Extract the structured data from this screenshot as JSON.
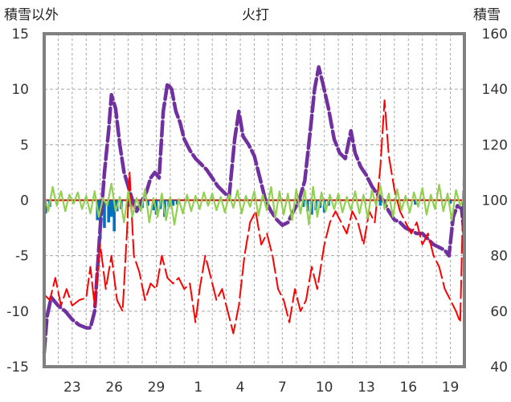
{
  "chart_data": {
    "type": "line",
    "title": "火打",
    "y_left_label": "積雪以外",
    "y_right_label": "積雪",
    "y_left_range": [
      -15,
      15
    ],
    "y_left_ticks": [
      "15",
      "10",
      "5",
      "0",
      "-5",
      "-10",
      "-15"
    ],
    "y_right_range": [
      40,
      160
    ],
    "y_right_ticks": [
      "160",
      "140",
      "120",
      "100",
      "80",
      "60",
      "40"
    ],
    "x_day_range": [
      21,
      51
    ],
    "x_ticks": [
      {
        "label": "23",
        "day": 23
      },
      {
        "label": "26",
        "day": 26
      },
      {
        "label": "29",
        "day": 29
      },
      {
        "label": "1",
        "day": 32
      },
      {
        "label": "4",
        "day": 35
      },
      {
        "label": "7",
        "day": 38
      },
      {
        "label": "10",
        "day": 41
      },
      {
        "label": "13",
        "day": 44
      },
      {
        "label": "16",
        "day": 47
      },
      {
        "label": "19",
        "day": 50
      }
    ],
    "colors": {
      "snow_depth": "#7030a0",
      "temperature": "#ff0000",
      "wind": "#92d050",
      "precipitation": "#0070c0",
      "grid": "#a6a6a6",
      "frame": "#808080",
      "zero_line": "#c00000"
    },
    "series": [
      {
        "key": "snow_depth",
        "axis": "right",
        "points": [
          [
            21.0,
            45
          ],
          [
            21.2,
            58
          ],
          [
            21.5,
            65
          ],
          [
            22.0,
            62
          ],
          [
            22.5,
            60
          ],
          [
            23.0,
            57
          ],
          [
            23.5,
            55
          ],
          [
            24.0,
            54
          ],
          [
            24.3,
            54
          ],
          [
            24.6,
            60
          ],
          [
            25.0,
            90
          ],
          [
            25.3,
            110
          ],
          [
            25.6,
            125
          ],
          [
            25.8,
            138
          ],
          [
            26.1,
            133
          ],
          [
            26.4,
            120
          ],
          [
            26.7,
            110
          ],
          [
            27.0,
            105
          ],
          [
            27.3,
            100
          ],
          [
            27.6,
            96
          ],
          [
            28.0,
            100
          ],
          [
            28.3,
            103
          ],
          [
            28.6,
            108
          ],
          [
            28.9,
            110
          ],
          [
            29.2,
            108
          ],
          [
            29.5,
            132
          ],
          [
            29.8,
            142
          ],
          [
            30.1,
            140
          ],
          [
            30.4,
            132
          ],
          [
            30.7,
            128
          ],
          [
            31.0,
            122
          ],
          [
            31.4,
            118
          ],
          [
            31.8,
            115
          ],
          [
            32.2,
            113
          ],
          [
            32.6,
            111
          ],
          [
            33.0,
            108
          ],
          [
            33.4,
            105
          ],
          [
            33.8,
            103
          ],
          [
            34.2,
            101
          ],
          [
            34.6,
            122
          ],
          [
            34.9,
            132
          ],
          [
            35.2,
            123
          ],
          [
            35.6,
            120
          ],
          [
            36.0,
            116
          ],
          [
            36.4,
            108
          ],
          [
            36.8,
            100
          ],
          [
            37.2,
            96
          ],
          [
            37.6,
            93
          ],
          [
            38.0,
            91
          ],
          [
            38.4,
            92
          ],
          [
            38.8,
            96
          ],
          [
            39.2,
            100
          ],
          [
            39.6,
            107
          ],
          [
            40.0,
            125
          ],
          [
            40.3,
            140
          ],
          [
            40.6,
            148
          ],
          [
            40.9,
            142
          ],
          [
            41.3,
            133
          ],
          [
            41.7,
            122
          ],
          [
            42.1,
            117
          ],
          [
            42.5,
            115
          ],
          [
            42.9,
            125
          ],
          [
            43.2,
            117
          ],
          [
            43.6,
            112
          ],
          [
            44.0,
            109
          ],
          [
            44.4,
            105
          ],
          [
            44.8,
            102
          ],
          [
            45.2,
            100
          ],
          [
            45.6,
            96
          ],
          [
            46.0,
            93
          ],
          [
            46.4,
            92
          ],
          [
            46.8,
            90
          ],
          [
            47.2,
            89
          ],
          [
            47.6,
            88
          ],
          [
            48.0,
            88
          ],
          [
            48.4,
            86
          ],
          [
            48.8,
            84
          ],
          [
            49.2,
            83
          ],
          [
            49.6,
            82
          ],
          [
            49.9,
            80
          ],
          [
            50.2,
            94
          ],
          [
            50.5,
            98
          ],
          [
            50.8,
            97
          ],
          [
            51.0,
            87
          ]
        ]
      },
      {
        "key": "temperature",
        "axis": "left",
        "points": [
          [
            21.0,
            -8.5
          ],
          [
            21.4,
            -9
          ],
          [
            21.8,
            -7
          ],
          [
            22.2,
            -9.5
          ],
          [
            22.6,
            -8
          ],
          [
            23.0,
            -9.5
          ],
          [
            23.5,
            -9
          ],
          [
            24.0,
            -8.8
          ],
          [
            24.3,
            -6
          ],
          [
            24.6,
            -9.5
          ],
          [
            25.0,
            -4
          ],
          [
            25.4,
            -8
          ],
          [
            25.8,
            -5
          ],
          [
            26.2,
            -9
          ],
          [
            26.6,
            -10
          ],
          [
            26.9,
            -3
          ],
          [
            27.1,
            2.5
          ],
          [
            27.4,
            -5
          ],
          [
            27.8,
            -6.5
          ],
          [
            28.2,
            -9
          ],
          [
            28.6,
            -7.5
          ],
          [
            29.0,
            -8
          ],
          [
            29.4,
            -5
          ],
          [
            29.8,
            -7
          ],
          [
            30.2,
            -7.5
          ],
          [
            30.6,
            -7
          ],
          [
            31.0,
            -8
          ],
          [
            31.4,
            -7.5
          ],
          [
            31.8,
            -11
          ],
          [
            32.1,
            -8
          ],
          [
            32.5,
            -5
          ],
          [
            32.9,
            -7
          ],
          [
            33.3,
            -9
          ],
          [
            33.7,
            -8
          ],
          [
            34.1,
            -10
          ],
          [
            34.5,
            -12
          ],
          [
            34.9,
            -9.5
          ],
          [
            35.3,
            -5
          ],
          [
            35.7,
            -2
          ],
          [
            36.1,
            -1
          ],
          [
            36.5,
            -4
          ],
          [
            36.9,
            -3
          ],
          [
            37.3,
            -5
          ],
          [
            37.7,
            -8
          ],
          [
            38.1,
            -9
          ],
          [
            38.5,
            -11
          ],
          [
            38.9,
            -8
          ],
          [
            39.3,
            -10
          ],
          [
            39.7,
            -9
          ],
          [
            40.1,
            -6
          ],
          [
            40.5,
            -8
          ],
          [
            41.0,
            -4
          ],
          [
            41.4,
            -2
          ],
          [
            41.8,
            -1
          ],
          [
            42.2,
            -2
          ],
          [
            42.6,
            -3
          ],
          [
            43.0,
            -1
          ],
          [
            43.4,
            -2
          ],
          [
            43.8,
            -4
          ],
          [
            44.2,
            -1
          ],
          [
            44.6,
            -2
          ],
          [
            45.0,
            3
          ],
          [
            45.3,
            9
          ],
          [
            45.6,
            4
          ],
          [
            46.0,
            1
          ],
          [
            46.4,
            -1
          ],
          [
            46.8,
            -2
          ],
          [
            47.2,
            -3
          ],
          [
            47.6,
            -2
          ],
          [
            48.0,
            -4
          ],
          [
            48.4,
            -3
          ],
          [
            48.8,
            -5
          ],
          [
            49.2,
            -6
          ],
          [
            49.6,
            -8
          ],
          [
            50.0,
            -9
          ],
          [
            50.4,
            -10
          ],
          [
            50.7,
            -11
          ],
          [
            51.0,
            5
          ]
        ]
      },
      {
        "key": "wind",
        "axis": "left",
        "points": [
          [
            21.0,
            0.5
          ],
          [
            21.3,
            -1
          ],
          [
            21.6,
            1.2
          ],
          [
            21.9,
            -0.5
          ],
          [
            22.2,
            0.8
          ],
          [
            22.5,
            -1
          ],
          [
            22.8,
            0.5
          ],
          [
            23.1,
            -0.3
          ],
          [
            23.4,
            0.7
          ],
          [
            23.7,
            -0.8
          ],
          [
            24.0,
            0.4
          ],
          [
            24.3,
            -1.2
          ],
          [
            24.6,
            0.8
          ],
          [
            24.9,
            -1.5
          ],
          [
            25.2,
            0.2
          ],
          [
            25.5,
            -0.5
          ],
          [
            25.8,
            1.5
          ],
          [
            26.1,
            -1
          ],
          [
            26.4,
            0.3
          ],
          [
            26.7,
            -2
          ],
          [
            27.0,
            0.8
          ],
          [
            27.3,
            -1.5
          ],
          [
            27.6,
            0.2
          ],
          [
            27.9,
            -1
          ],
          [
            28.2,
            1
          ],
          [
            28.5,
            -2
          ],
          [
            28.8,
            0.2
          ],
          [
            29.1,
            -1.5
          ],
          [
            29.4,
            0.6
          ],
          [
            29.7,
            -1.8
          ],
          [
            30.0,
            0.3
          ],
          [
            30.3,
            -2.2
          ],
          [
            30.6,
            0.1
          ],
          [
            30.9,
            -1.2
          ],
          [
            31.2,
            0.5
          ],
          [
            31.5,
            -1
          ],
          [
            31.8,
            0.4
          ],
          [
            32.1,
            -0.8
          ],
          [
            32.4,
            0.7
          ],
          [
            32.7,
            -0.5
          ],
          [
            33.0,
            0.6
          ],
          [
            33.3,
            -0.9
          ],
          [
            33.6,
            0.3
          ],
          [
            33.9,
            -1.1
          ],
          [
            34.2,
            0.5
          ],
          [
            34.5,
            -0.7
          ],
          [
            34.8,
            0.9
          ],
          [
            35.1,
            -1.2
          ],
          [
            35.4,
            0.4
          ],
          [
            35.7,
            -0.6
          ],
          [
            36.0,
            0.8
          ],
          [
            36.3,
            -1.4
          ],
          [
            36.6,
            0.5
          ],
          [
            36.9,
            -0.9
          ],
          [
            37.2,
            1.2
          ],
          [
            37.5,
            -1.6
          ],
          [
            37.8,
            0.8
          ],
          [
            38.1,
            -1.3
          ],
          [
            38.4,
            0.6
          ],
          [
            38.7,
            -1.8
          ],
          [
            39.0,
            1
          ],
          [
            39.3,
            -1.2
          ],
          [
            39.6,
            0.9
          ],
          [
            39.9,
            -2.2
          ],
          [
            40.2,
            1.2
          ],
          [
            40.5,
            -1.5
          ],
          [
            40.8,
            0.7
          ],
          [
            41.1,
            -1
          ],
          [
            41.4,
            0.5
          ],
          [
            41.7,
            -0.8
          ],
          [
            42.0,
            0.6
          ],
          [
            42.3,
            -1.1
          ],
          [
            42.6,
            0.3
          ],
          [
            42.9,
            -0.9
          ],
          [
            43.2,
            0.8
          ],
          [
            43.5,
            -1.2
          ],
          [
            43.8,
            0.5
          ],
          [
            44.1,
            -1.6
          ],
          [
            44.4,
            0.9
          ],
          [
            44.7,
            -0.5
          ],
          [
            45.0,
            1.3
          ],
          [
            45.3,
            -0.8
          ],
          [
            45.6,
            0.6
          ],
          [
            45.9,
            -1.5
          ],
          [
            46.2,
            1
          ],
          [
            46.5,
            -0.9
          ],
          [
            46.8,
            0.4
          ],
          [
            47.1,
            -1.1
          ],
          [
            47.4,
            0.7
          ],
          [
            47.7,
            -0.6
          ],
          [
            48.0,
            1.1
          ],
          [
            48.3,
            -1.3
          ],
          [
            48.6,
            0.5
          ],
          [
            48.9,
            -0.8
          ],
          [
            49.2,
            1.4
          ],
          [
            49.5,
            -1
          ],
          [
            49.8,
            0.6
          ],
          [
            50.1,
            -1.8
          ],
          [
            50.4,
            0.9
          ],
          [
            50.7,
            -0.5
          ],
          [
            51.0,
            0.3
          ]
        ]
      },
      {
        "key": "precipitation",
        "axis": "left",
        "type": "bar",
        "points": [
          [
            21.1,
            -1.2
          ],
          [
            21.4,
            -0.6
          ],
          [
            24.8,
            -1.8
          ],
          [
            25.0,
            -3.5
          ],
          [
            25.3,
            -2.5
          ],
          [
            25.6,
            -2
          ],
          [
            25.8,
            -1.5
          ],
          [
            26.0,
            -2.8
          ],
          [
            26.2,
            -1
          ],
          [
            26.5,
            -0.8
          ],
          [
            27.0,
            -0.6
          ],
          [
            28.0,
            -0.7
          ],
          [
            28.4,
            -0.5
          ],
          [
            28.8,
            -0.9
          ],
          [
            29.0,
            -1.3
          ],
          [
            29.3,
            -0.8
          ],
          [
            29.6,
            -1.5
          ],
          [
            29.9,
            -0.6
          ],
          [
            30.2,
            -0.5
          ],
          [
            30.5,
            -0.4
          ],
          [
            39.5,
            -0.6
          ],
          [
            39.8,
            -1
          ],
          [
            40.1,
            -1.3
          ],
          [
            40.4,
            -0.9
          ],
          [
            40.7,
            -0.7
          ],
          [
            41.0,
            -1.1
          ],
          [
            41.3,
            -0.5
          ],
          [
            45.0,
            -0.5
          ],
          [
            47.5,
            -0.4
          ],
          [
            50.0,
            -0.3
          ]
        ]
      }
    ]
  }
}
